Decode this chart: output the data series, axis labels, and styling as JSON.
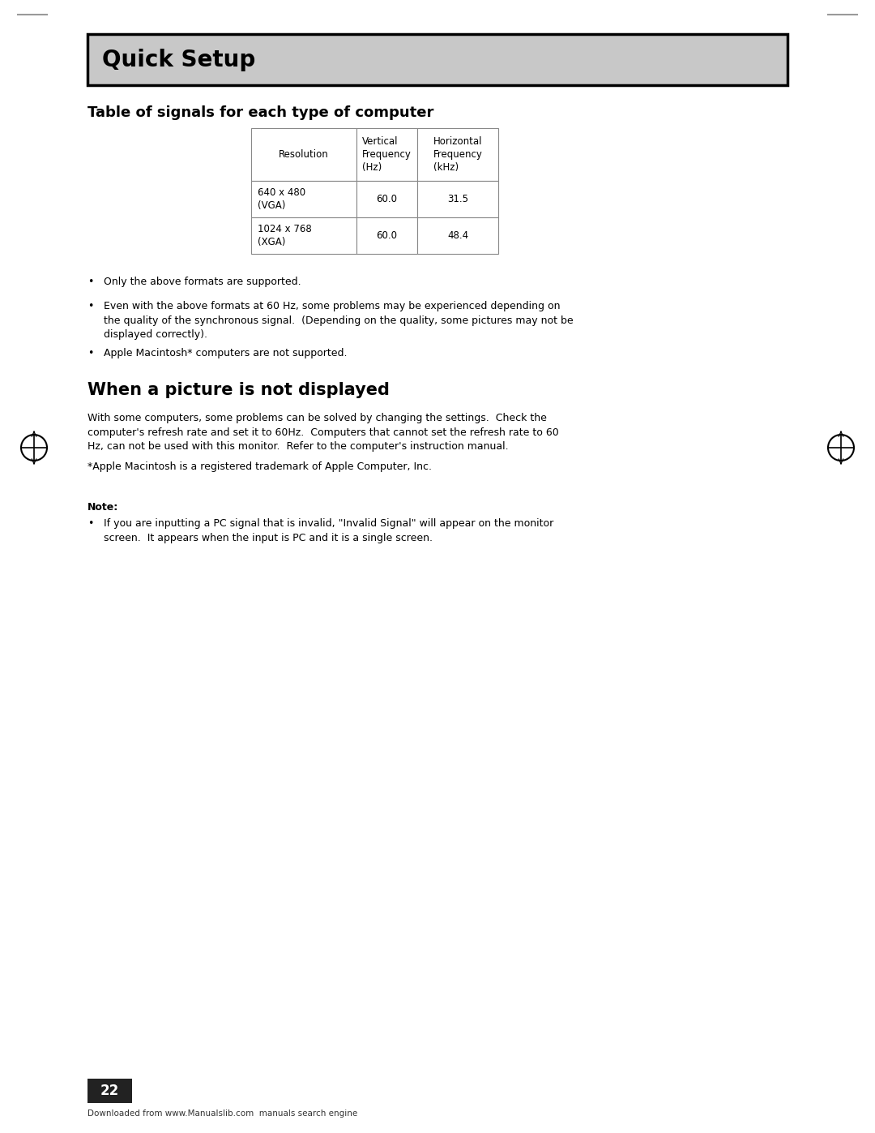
{
  "page_bg": "#ffffff",
  "header_bg": "#c8c8c8",
  "header_border": "#000000",
  "header_text": "Quick Setup",
  "header_fontsize": 20,
  "section1_title": "Table of signals for each type of computer",
  "section1_title_fontsize": 13,
  "table_headers": [
    "Resolution",
    "Vertical\nFrequency\n(Hz)",
    "Horizontal\nFrequency\n(kHz)"
  ],
  "table_rows": [
    [
      "640 x 480\n(VGA)",
      "60.0",
      "31.5"
    ],
    [
      "1024 x 768\n(XGA)",
      "60.0",
      "48.4"
    ]
  ],
  "table_border_color": "#888888",
  "table_header_bg": "#ffffff",
  "bullets1": [
    "Only the above formats are supported.",
    "Even with the above formats at 60 Hz, some problems may be experienced depending on\nthe quality of the synchronous signal.  (Depending on the quality, some pictures may not be\ndisplayed correctly).",
    "Apple Macintosh* computers are not supported."
  ],
  "section2_title": "When a picture is not displayed",
  "section2_title_fontsize": 15,
  "section2_body": "With some computers, some problems can be solved by changing the settings.  Check the\ncomputer's refresh rate and set it to 60Hz.  Computers that cannot set the refresh rate to 60\nHz, can not be used with this monitor.  Refer to the computer's instruction manual.",
  "section2_footnote": "*Apple Macintosh is a registered trademark of Apple Computer, Inc.",
  "note_label": "Note:",
  "note_bullet": "If you are inputting a PC signal that is invalid, \"Invalid Signal\" will appear on the monitor\nscreen.  It appears when the input is PC and it is a single screen.",
  "page_number": "22",
  "footer_text": "Downloaded from www.Manualslib.com  manuals search engine",
  "text_color": "#000000",
  "body_fontsize": 9.0,
  "small_fontsize": 7.5
}
